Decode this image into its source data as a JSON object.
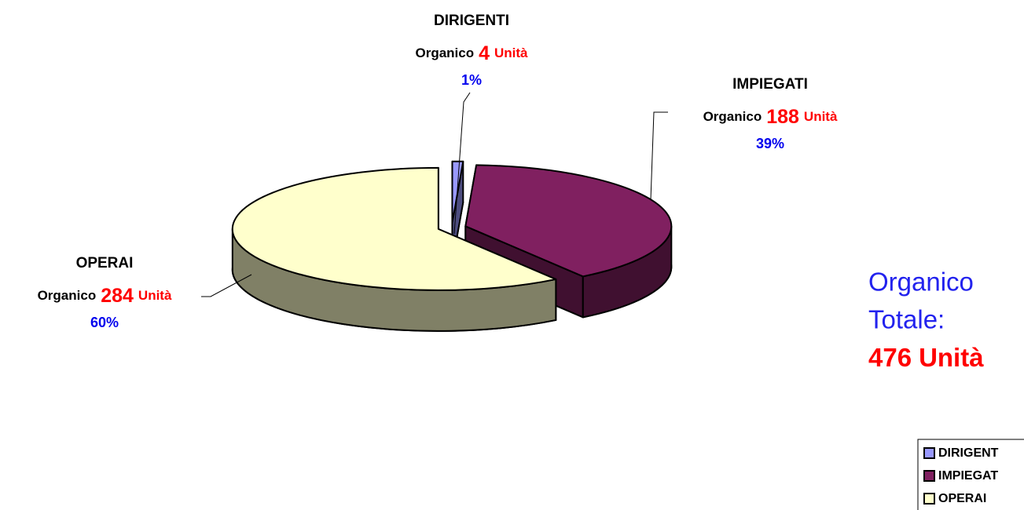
{
  "chart_data": {
    "type": "pie3d",
    "categories": [
      "DIRIGENTI",
      "IMPIEGATI",
      "OPERAI"
    ],
    "values": [
      4,
      188,
      284
    ],
    "percentages": [
      "1%",
      "39%",
      "60%"
    ],
    "colors": [
      "#9999ff",
      "#802060",
      "#ffffcc"
    ],
    "label_prefix": "Organico",
    "label_suffix": "Unità",
    "total": {
      "line1": "Organico",
      "line2": "Totale:",
      "value": 476,
      "unit": "Unità"
    },
    "legend_labels": [
      "DIRIGENT",
      "IMPIEGAT",
      "OPERAI"
    ]
  }
}
